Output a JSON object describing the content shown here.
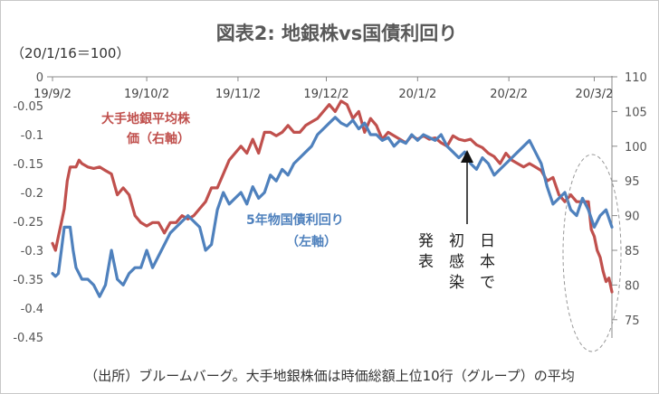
{
  "chart_data": {
    "type": "line",
    "title": "図表2: 地銀株vs国債利回り",
    "unit_note": "（20/1/16＝100）",
    "source_note": "（出所）ブルームバーグ。大手地銀株価は時価総額上位10行（グループ）の平均",
    "x_tick_labels": [
      "19/9/2",
      "19/10/2",
      "19/11/2",
      "19/12/2",
      "20/1/2",
      "20/2/2",
      "20/3/2"
    ],
    "left_axis": {
      "ylim": [
        -0.45,
        0
      ],
      "ticks": [
        "0",
        "-0.05",
        "-0.1",
        "-0.15",
        "-0.2",
        "-0.25",
        "-0.3",
        "-0.35",
        "-0.4",
        "-0.45"
      ]
    },
    "right_axis": {
      "ylim": [
        72.5,
        110
      ],
      "ticks": [
        "110",
        "105",
        "100",
        "95",
        "90",
        "85",
        "80",
        "75"
      ]
    },
    "series": [
      {
        "name": "大手地銀平均株価（右軸）",
        "label_lines": [
          "大手地銀平均株",
          "価（右軸）"
        ],
        "axis": "right",
        "color": "#c0504d",
        "x": [
          0,
          1,
          2,
          3,
          4,
          5,
          6,
          7,
          8,
          9,
          10,
          12,
          14,
          16,
          18,
          20,
          22,
          24,
          26,
          28,
          30,
          32,
          34,
          36,
          38,
          40,
          42,
          44,
          46,
          48,
          50,
          52,
          54,
          56,
          58,
          60,
          62,
          64,
          66,
          68,
          70,
          72,
          74,
          76,
          78,
          80,
          82,
          84,
          86,
          88,
          90,
          92,
          94,
          96,
          98,
          100,
          102,
          104,
          106,
          108,
          110,
          112,
          114,
          116,
          118,
          120,
          122,
          124,
          126,
          128,
          130,
          132,
          134,
          136,
          138,
          140,
          142,
          144,
          146,
          148,
          150,
          152,
          154,
          156,
          158,
          160,
          162,
          164,
          166,
          168,
          170,
          172,
          174,
          176,
          178,
          180,
          182,
          183,
          184,
          185,
          186,
          187,
          188,
          189,
          190
        ],
        "values": [
          86,
          85,
          87,
          89,
          91,
          95,
          97,
          97,
          97,
          98,
          97.5,
          97,
          96.8,
          97,
          96.5,
          96,
          93,
          94,
          93,
          90,
          89,
          88.5,
          89,
          89,
          87.5,
          89,
          89,
          90,
          89.5,
          90,
          91,
          92,
          94,
          94,
          96,
          98,
          99,
          100,
          99,
          101,
          99,
          102,
          102,
          101.5,
          102,
          103,
          102,
          102,
          103,
          103.5,
          104,
          105,
          106,
          105,
          106.5,
          106,
          104,
          105,
          102,
          104,
          103,
          101,
          102,
          101.5,
          101,
          100.5,
          101.5,
          101,
          101.5,
          101,
          101.2,
          100.5,
          100,
          101.5,
          101,
          100.8,
          101,
          100.2,
          99.8,
          99,
          98.5,
          97.5,
          99,
          98,
          97.5,
          97,
          97.5,
          97,
          96.5,
          95,
          95.5,
          93,
          92,
          93,
          92,
          92,
          92,
          88,
          87,
          85,
          84,
          82,
          80.5,
          81,
          79
        ]
      },
      {
        "name": "5年物国債利回り（左軸）",
        "label_lines": [
          "5年物国債利回り",
          "（左軸）"
        ],
        "axis": "left",
        "color": "#4f81bd",
        "x": [
          0,
          1,
          2,
          3,
          4,
          5,
          6,
          7,
          8,
          10,
          12,
          14,
          16,
          18,
          20,
          22,
          24,
          26,
          28,
          30,
          32,
          34,
          36,
          38,
          40,
          42,
          44,
          46,
          48,
          50,
          52,
          54,
          56,
          58,
          60,
          62,
          64,
          66,
          68,
          70,
          72,
          74,
          76,
          78,
          80,
          82,
          84,
          86,
          88,
          90,
          92,
          94,
          96,
          98,
          100,
          102,
          104,
          106,
          108,
          110,
          112,
          114,
          116,
          118,
          120,
          122,
          124,
          126,
          128,
          130,
          132,
          134,
          136,
          138,
          140,
          142,
          144,
          146,
          148,
          150,
          152,
          154,
          156,
          158,
          160,
          162,
          164,
          166,
          168,
          170,
          172,
          174,
          176,
          178,
          180,
          182,
          184,
          186,
          188,
          190
        ],
        "values": [
          -0.34,
          -0.345,
          -0.34,
          -0.3,
          -0.26,
          -0.26,
          -0.26,
          -0.3,
          -0.33,
          -0.35,
          -0.35,
          -0.36,
          -0.38,
          -0.36,
          -0.3,
          -0.35,
          -0.36,
          -0.34,
          -0.33,
          -0.33,
          -0.3,
          -0.33,
          -0.31,
          -0.29,
          -0.27,
          -0.26,
          -0.25,
          -0.24,
          -0.25,
          -0.26,
          -0.3,
          -0.29,
          -0.23,
          -0.2,
          -0.22,
          -0.21,
          -0.2,
          -0.22,
          -0.19,
          -0.21,
          -0.2,
          -0.17,
          -0.18,
          -0.16,
          -0.17,
          -0.15,
          -0.14,
          -0.13,
          -0.12,
          -0.1,
          -0.09,
          -0.08,
          -0.07,
          -0.08,
          -0.085,
          -0.075,
          -0.09,
          -0.08,
          -0.1,
          -0.1,
          -0.11,
          -0.105,
          -0.12,
          -0.11,
          -0.115,
          -0.1,
          -0.11,
          -0.1,
          -0.105,
          -0.11,
          -0.1,
          -0.12,
          -0.13,
          -0.14,
          -0.13,
          -0.15,
          -0.16,
          -0.14,
          -0.15,
          -0.17,
          -0.16,
          -0.15,
          -0.14,
          -0.13,
          -0.12,
          -0.11,
          -0.13,
          -0.15,
          -0.19,
          -0.22,
          -0.21,
          -0.2,
          -0.23,
          -0.24,
          -0.21,
          -0.23,
          -0.26,
          -0.24,
          -0.23,
          -0.26
        ]
      }
    ],
    "annotations": [
      {
        "text_lines": [
          "日",
          "本",
          "で"
        ]
      },
      {
        "text_lines": [
          "初",
          "感",
          "染"
        ]
      },
      {
        "text_lines": [
          "発",
          "表"
        ]
      }
    ],
    "legend": "inline labels",
    "grid": false
  }
}
